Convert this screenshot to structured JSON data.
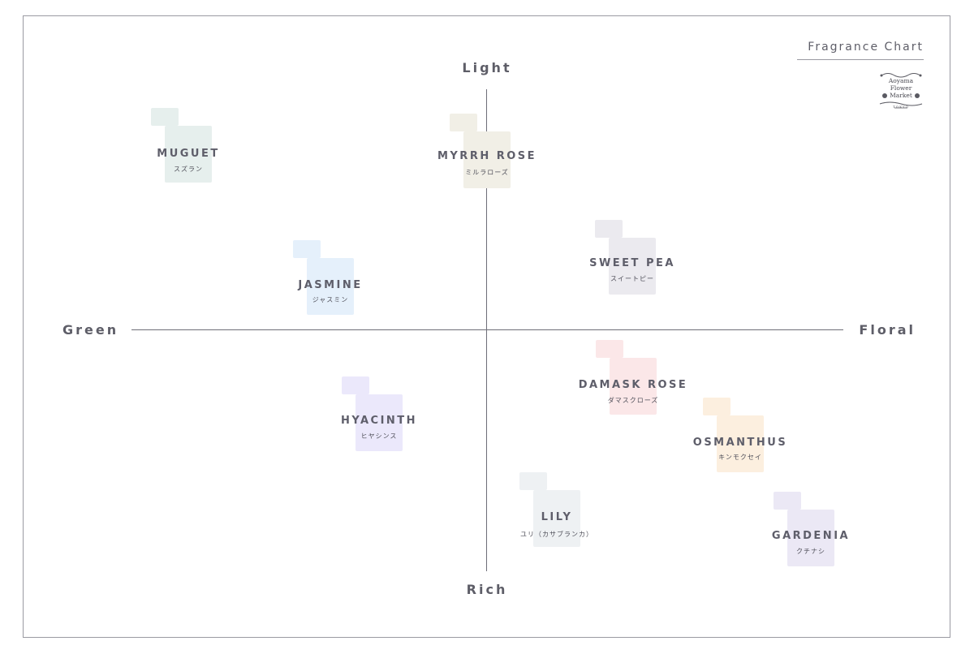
{
  "brand": {
    "title": "Fragrance Chart",
    "logo_line1": "Aoyama",
    "logo_line2": "Flower",
    "logo_line3": "Market",
    "logo_line4": "TOKYO"
  },
  "axes": {
    "top": "Light",
    "bottom": "Rich",
    "left": "Green",
    "right": "Floral"
  },
  "fragrances": [
    {
      "name": "MUGUET",
      "jp": "スズラン",
      "color": "#e6efed"
    },
    {
      "name": "MYRRH ROSE",
      "jp": "ミルラローズ",
      "color": "#f1efe6"
    },
    {
      "name": "SWEET PEA",
      "jp": "スイートピー",
      "color": "#ebeaef"
    },
    {
      "name": "JASMINE",
      "jp": "ジャスミン",
      "color": "#e5f0fb"
    },
    {
      "name": "DAMASK ROSE",
      "jp": "ダマスクローズ",
      "color": "#fbe7e8"
    },
    {
      "name": "HYACINTH",
      "jp": "ヒヤシンス",
      "color": "#ebe8fb"
    },
    {
      "name": "OSMANTHUS",
      "jp": "キンモクセイ",
      "color": "#fcefdf"
    },
    {
      "name": "LILY",
      "jp": "ユリ（カサブランカ）",
      "color": "#eef1f3"
    },
    {
      "name": "GARDENIA",
      "jp": "クチナシ",
      "color": "#ebe8f5"
    }
  ]
}
